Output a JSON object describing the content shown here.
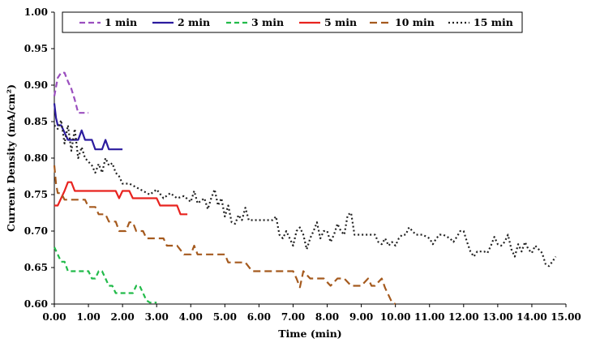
{
  "chart_data": {
    "type": "line",
    "title": "",
    "xlabel": "Time (min)",
    "ylabel": "Current Density (mA/cm²)",
    "xlim": [
      0,
      15
    ],
    "ylim": [
      0.6,
      1.0
    ],
    "x_ticks": [
      "0.00",
      "1.00",
      "2.00",
      "3.00",
      "4.00",
      "5.00",
      "6.00",
      "7.00",
      "8.00",
      "9.00",
      "10.00",
      "11.00",
      "12.00",
      "13.00",
      "14.00",
      "15.00"
    ],
    "y_ticks": [
      "0.60",
      "0.65",
      "0.70",
      "0.75",
      "0.80",
      "0.85",
      "0.90",
      "0.95",
      "1.00"
    ],
    "grid": false,
    "legend_position": "top",
    "series": [
      {
        "name": "1 min",
        "color": "#9b4fbf",
        "dash": "7,4",
        "width": 2.2,
        "points": [
          [
            0,
            0.885
          ],
          [
            0.1,
            0.91
          ],
          [
            0.2,
            0.917
          ],
          [
            0.3,
            0.917
          ],
          [
            0.4,
            0.905
          ],
          [
            0.5,
            0.895
          ],
          [
            0.6,
            0.88
          ],
          [
            0.7,
            0.862
          ],
          [
            0.8,
            0.862
          ],
          [
            0.9,
            0.862
          ],
          [
            1.0,
            0.862
          ]
        ]
      },
      {
        "name": "2 min",
        "color": "#2b1b9e",
        "dash": "",
        "width": 2.2,
        "points": [
          [
            0,
            0.875
          ],
          [
            0.05,
            0.855
          ],
          [
            0.1,
            0.845
          ],
          [
            0.2,
            0.845
          ],
          [
            0.3,
            0.835
          ],
          [
            0.4,
            0.825
          ],
          [
            0.5,
            0.825
          ],
          [
            0.6,
            0.825
          ],
          [
            0.7,
            0.825
          ],
          [
            0.8,
            0.838
          ],
          [
            0.9,
            0.825
          ],
          [
            1.0,
            0.825
          ],
          [
            1.1,
            0.825
          ],
          [
            1.2,
            0.812
          ],
          [
            1.3,
            0.812
          ],
          [
            1.4,
            0.812
          ],
          [
            1.5,
            0.825
          ],
          [
            1.6,
            0.812
          ],
          [
            1.7,
            0.812
          ],
          [
            1.8,
            0.812
          ],
          [
            1.9,
            0.812
          ],
          [
            2.0,
            0.812
          ]
        ]
      },
      {
        "name": "3 min",
        "color": "#22bb4a",
        "dash": "6,4",
        "width": 2.2,
        "points": [
          [
            0,
            0.678
          ],
          [
            0.1,
            0.668
          ],
          [
            0.2,
            0.658
          ],
          [
            0.3,
            0.658
          ],
          [
            0.4,
            0.645
          ],
          [
            0.6,
            0.645
          ],
          [
            0.8,
            0.645
          ],
          [
            1.0,
            0.645
          ],
          [
            1.1,
            0.635
          ],
          [
            1.2,
            0.635
          ],
          [
            1.3,
            0.645
          ],
          [
            1.4,
            0.645
          ],
          [
            1.5,
            0.635
          ],
          [
            1.6,
            0.625
          ],
          [
            1.7,
            0.625
          ],
          [
            1.8,
            0.615
          ],
          [
            1.9,
            0.615
          ],
          [
            2.0,
            0.615
          ],
          [
            2.1,
            0.615
          ],
          [
            2.2,
            0.615
          ],
          [
            2.3,
            0.615
          ],
          [
            2.4,
            0.625
          ],
          [
            2.5,
            0.625
          ],
          [
            2.6,
            0.615
          ],
          [
            2.7,
            0.605
          ],
          [
            2.8,
            0.602
          ],
          [
            2.9,
            0.602
          ],
          [
            3.0,
            0.602
          ]
        ]
      },
      {
        "name": "5 min",
        "color": "#e8231f",
        "dash": "",
        "width": 2.2,
        "points": [
          [
            0,
            0.735
          ],
          [
            0.1,
            0.735
          ],
          [
            0.2,
            0.745
          ],
          [
            0.3,
            0.755
          ],
          [
            0.4,
            0.767
          ],
          [
            0.5,
            0.767
          ],
          [
            0.6,
            0.755
          ],
          [
            0.8,
            0.755
          ],
          [
            1.0,
            0.755
          ],
          [
            1.2,
            0.755
          ],
          [
            1.4,
            0.755
          ],
          [
            1.6,
            0.755
          ],
          [
            1.8,
            0.755
          ],
          [
            1.9,
            0.745
          ],
          [
            2.0,
            0.755
          ],
          [
            2.2,
            0.755
          ],
          [
            2.3,
            0.745
          ],
          [
            2.5,
            0.745
          ],
          [
            2.7,
            0.745
          ],
          [
            2.9,
            0.745
          ],
          [
            3.0,
            0.745
          ],
          [
            3.1,
            0.735
          ],
          [
            3.2,
            0.735
          ],
          [
            3.4,
            0.735
          ],
          [
            3.6,
            0.735
          ],
          [
            3.7,
            0.723
          ],
          [
            3.8,
            0.723
          ],
          [
            3.9,
            0.723
          ]
        ]
      },
      {
        "name": "10 min",
        "color": "#a55a1e",
        "dash": "9,5",
        "width": 2.2,
        "points": [
          [
            0,
            0.79
          ],
          [
            0.05,
            0.765
          ],
          [
            0.1,
            0.752
          ],
          [
            0.2,
            0.752
          ],
          [
            0.3,
            0.743
          ],
          [
            0.5,
            0.743
          ],
          [
            0.7,
            0.743
          ],
          [
            0.9,
            0.743
          ],
          [
            1.0,
            0.733
          ],
          [
            1.2,
            0.733
          ],
          [
            1.3,
            0.723
          ],
          [
            1.5,
            0.723
          ],
          [
            1.6,
            0.713
          ],
          [
            1.8,
            0.713
          ],
          [
            1.9,
            0.7
          ],
          [
            2.1,
            0.7
          ],
          [
            2.2,
            0.712
          ],
          [
            2.3,
            0.712
          ],
          [
            2.4,
            0.7
          ],
          [
            2.6,
            0.7
          ],
          [
            2.7,
            0.69
          ],
          [
            2.9,
            0.69
          ],
          [
            3.0,
            0.69
          ],
          [
            3.2,
            0.69
          ],
          [
            3.3,
            0.68
          ],
          [
            3.6,
            0.68
          ],
          [
            3.8,
            0.668
          ],
          [
            4.0,
            0.668
          ],
          [
            4.1,
            0.68
          ],
          [
            4.2,
            0.668
          ],
          [
            4.4,
            0.668
          ],
          [
            4.6,
            0.668
          ],
          [
            4.8,
            0.668
          ],
          [
            5.0,
            0.668
          ],
          [
            5.1,
            0.657
          ],
          [
            5.4,
            0.657
          ],
          [
            5.6,
            0.657
          ],
          [
            5.8,
            0.645
          ],
          [
            6.2,
            0.645
          ],
          [
            6.6,
            0.645
          ],
          [
            7.0,
            0.645
          ],
          [
            7.1,
            0.635
          ],
          [
            7.2,
            0.623
          ],
          [
            7.3,
            0.645
          ],
          [
            7.5,
            0.635
          ],
          [
            7.9,
            0.635
          ],
          [
            8.1,
            0.625
          ],
          [
            8.3,
            0.635
          ],
          [
            8.5,
            0.635
          ],
          [
            8.7,
            0.625
          ],
          [
            9.0,
            0.625
          ],
          [
            9.2,
            0.635
          ],
          [
            9.3,
            0.625
          ],
          [
            9.4,
            0.625
          ],
          [
            9.6,
            0.635
          ],
          [
            9.7,
            0.622
          ],
          [
            9.8,
            0.612
          ],
          [
            9.9,
            0.602
          ],
          [
            10.0,
            0.6
          ]
        ]
      },
      {
        "name": "15 min",
        "color": "#222222",
        "dash": "2,3",
        "width": 2.2,
        "points": [
          [
            0,
            0.845
          ],
          [
            0.1,
            0.84
          ],
          [
            0.2,
            0.852
          ],
          [
            0.3,
            0.82
          ],
          [
            0.4,
            0.845
          ],
          [
            0.5,
            0.81
          ],
          [
            0.6,
            0.84
          ],
          [
            0.7,
            0.8
          ],
          [
            0.8,
            0.815
          ],
          [
            0.9,
            0.8
          ],
          [
            1.0,
            0.795
          ],
          [
            1.1,
            0.79
          ],
          [
            1.2,
            0.78
          ],
          [
            1.3,
            0.792
          ],
          [
            1.4,
            0.78
          ],
          [
            1.5,
            0.8
          ],
          [
            1.6,
            0.79
          ],
          [
            1.7,
            0.793
          ],
          [
            1.8,
            0.78
          ],
          [
            1.9,
            0.775
          ],
          [
            2.0,
            0.765
          ],
          [
            2.2,
            0.765
          ],
          [
            2.4,
            0.76
          ],
          [
            2.6,
            0.755
          ],
          [
            2.8,
            0.75
          ],
          [
            3.0,
            0.757
          ],
          [
            3.2,
            0.745
          ],
          [
            3.4,
            0.752
          ],
          [
            3.6,
            0.745
          ],
          [
            3.8,
            0.748
          ],
          [
            4.0,
            0.74
          ],
          [
            4.1,
            0.755
          ],
          [
            4.2,
            0.738
          ],
          [
            4.4,
            0.745
          ],
          [
            4.5,
            0.73
          ],
          [
            4.6,
            0.745
          ],
          [
            4.7,
            0.757
          ],
          [
            4.8,
            0.735
          ],
          [
            4.9,
            0.745
          ],
          [
            5.0,
            0.72
          ],
          [
            5.1,
            0.735
          ],
          [
            5.2,
            0.712
          ],
          [
            5.3,
            0.71
          ],
          [
            5.4,
            0.722
          ],
          [
            5.5,
            0.715
          ],
          [
            5.6,
            0.732
          ],
          [
            5.7,
            0.715
          ],
          [
            5.8,
            0.715
          ],
          [
            6.0,
            0.715
          ],
          [
            6.2,
            0.715
          ],
          [
            6.4,
            0.715
          ],
          [
            6.5,
            0.72
          ],
          [
            6.6,
            0.695
          ],
          [
            6.7,
            0.69
          ],
          [
            6.8,
            0.7
          ],
          [
            6.9,
            0.69
          ],
          [
            7.0,
            0.68
          ],
          [
            7.1,
            0.7
          ],
          [
            7.2,
            0.705
          ],
          [
            7.3,
            0.695
          ],
          [
            7.4,
            0.675
          ],
          [
            7.5,
            0.69
          ],
          [
            7.6,
            0.7
          ],
          [
            7.7,
            0.712
          ],
          [
            7.8,
            0.69
          ],
          [
            7.9,
            0.7
          ],
          [
            8.0,
            0.7
          ],
          [
            8.1,
            0.685
          ],
          [
            8.2,
            0.695
          ],
          [
            8.3,
            0.71
          ],
          [
            8.4,
            0.7
          ],
          [
            8.5,
            0.695
          ],
          [
            8.6,
            0.722
          ],
          [
            8.7,
            0.725
          ],
          [
            8.8,
            0.695
          ],
          [
            8.9,
            0.695
          ],
          [
            9.0,
            0.695
          ],
          [
            9.2,
            0.695
          ],
          [
            9.4,
            0.695
          ],
          [
            9.5,
            0.685
          ],
          [
            9.6,
            0.682
          ],
          [
            9.7,
            0.69
          ],
          [
            9.8,
            0.68
          ],
          [
            9.9,
            0.685
          ],
          [
            10.0,
            0.68
          ],
          [
            10.1,
            0.69
          ],
          [
            10.2,
            0.695
          ],
          [
            10.3,
            0.695
          ],
          [
            10.4,
            0.705
          ],
          [
            10.5,
            0.7
          ],
          [
            10.6,
            0.695
          ],
          [
            10.8,
            0.695
          ],
          [
            11.0,
            0.69
          ],
          [
            11.1,
            0.682
          ],
          [
            11.2,
            0.69
          ],
          [
            11.3,
            0.695
          ],
          [
            11.4,
            0.695
          ],
          [
            11.6,
            0.69
          ],
          [
            11.7,
            0.685
          ],
          [
            11.8,
            0.692
          ],
          [
            11.9,
            0.7
          ],
          [
            12.0,
            0.7
          ],
          [
            12.1,
            0.685
          ],
          [
            12.2,
            0.672
          ],
          [
            12.3,
            0.665
          ],
          [
            12.4,
            0.672
          ],
          [
            12.5,
            0.672
          ],
          [
            12.6,
            0.672
          ],
          [
            12.7,
            0.67
          ],
          [
            12.8,
            0.68
          ],
          [
            12.9,
            0.692
          ],
          [
            13.0,
            0.682
          ],
          [
            13.1,
            0.68
          ],
          [
            13.2,
            0.685
          ],
          [
            13.3,
            0.695
          ],
          [
            13.4,
            0.675
          ],
          [
            13.5,
            0.665
          ],
          [
            13.6,
            0.682
          ],
          [
            13.7,
            0.672
          ],
          [
            13.8,
            0.685
          ],
          [
            13.9,
            0.675
          ],
          [
            14.0,
            0.67
          ],
          [
            14.1,
            0.68
          ],
          [
            14.2,
            0.675
          ],
          [
            14.3,
            0.67
          ],
          [
            14.4,
            0.655
          ],
          [
            14.5,
            0.652
          ],
          [
            14.6,
            0.658
          ],
          [
            14.7,
            0.665
          ]
        ]
      }
    ]
  }
}
